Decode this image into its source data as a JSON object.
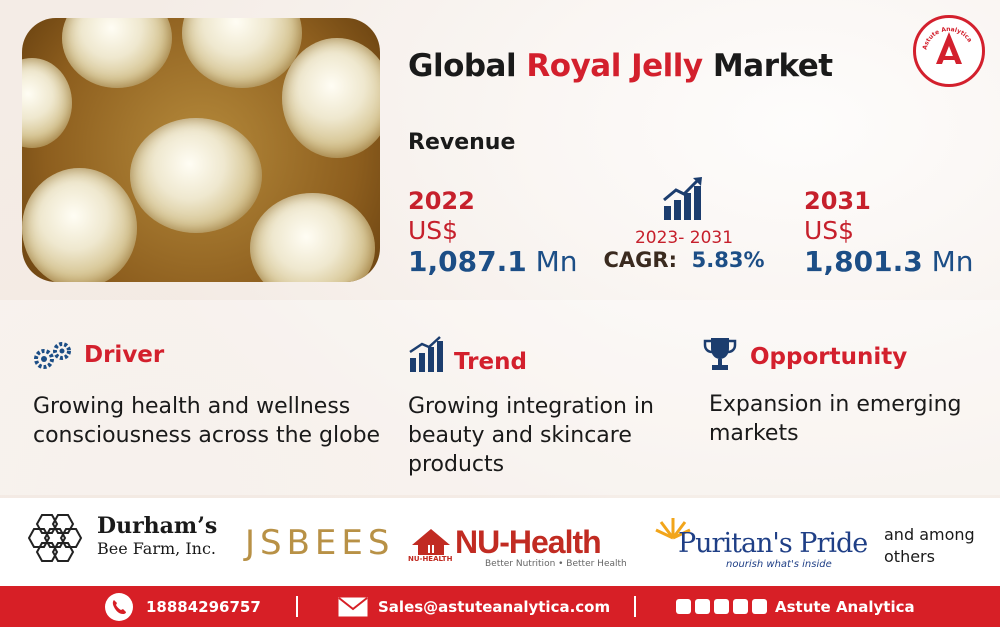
{
  "title": {
    "prefix": "Global ",
    "accent": "Royal Jelly",
    "suffix": " Market"
  },
  "brand_colors": {
    "red": "#d3202d",
    "blue": "#1c4e86"
  },
  "revenue_label": "Revenue",
  "start": {
    "year": "2022",
    "currency": "US$",
    "value": "1,087.1",
    "unit": "Mn"
  },
  "cagr": {
    "period": "2023- 2031",
    "label": "CAGR:",
    "value": "5.83%",
    "icon": "bar-chart-up-icon"
  },
  "end": {
    "year": "2031",
    "currency": "US$",
    "value": "1,801.3",
    "unit": "Mn"
  },
  "cards": {
    "driver": {
      "title": "Driver",
      "icon": "gears-icon",
      "text": "Growing health and wellness consciousness across the globe"
    },
    "trend": {
      "title": "Trend",
      "icon": "trend-chart-icon",
      "text": "Growing integration in beauty and skincare products"
    },
    "opportunity": {
      "title": "Opportunity",
      "icon": "trophy-icon",
      "text": "Expansion in emerging markets"
    }
  },
  "companies": {
    "durhams": {
      "line1": "Durham’s",
      "line2": "Bee Farm, Inc."
    },
    "jsbees": "JSBEES",
    "nuhealth": {
      "name": "NU-Health",
      "tag": "Better Nutrition • Better Health",
      "mark": "NU-HEALTH"
    },
    "puritans": {
      "name": "Puritan's Pride",
      "tag": "nourish what's inside"
    },
    "others": "and among others"
  },
  "logo_badge_text": "Astute Analytica",
  "footer": {
    "phone": "18884296757",
    "email": "Sales@astuteanalytica.com",
    "company": "Astute Analytica"
  }
}
